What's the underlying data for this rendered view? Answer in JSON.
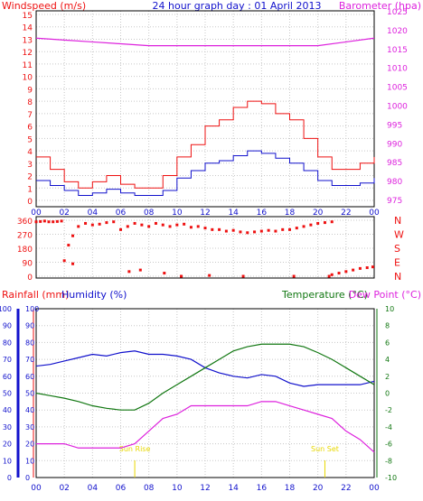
{
  "chart_data": [
    {
      "type": "line",
      "title": "24 hour graph day : 01 April 2013",
      "left_axis_label": "Windspeed (m/s)",
      "right_axis_label": "Barometer (hpa)",
      "x_ticks": [
        "00",
        "02",
        "04",
        "06",
        "08",
        "10",
        "12",
        "14",
        "16",
        "18",
        "20",
        "22",
        "00"
      ],
      "left_range": [
        0,
        15
      ],
      "left_ticks": [
        "0",
        "1",
        "2",
        "3",
        "4",
        "5",
        "6",
        "7",
        "8",
        "9",
        "10",
        "11",
        "12",
        "13",
        "14",
        "15"
      ],
      "right_range": [
        975,
        1025
      ],
      "right_ticks": [
        "975",
        "980",
        "985",
        "990",
        "995",
        "1000",
        "1005",
        "1010",
        "1015",
        "1020",
        "1025"
      ],
      "grid": true,
      "colors": {
        "gust": "#ee1111",
        "average": "#1111cc",
        "barometer": "#dd22dd"
      },
      "series": [
        {
          "key": "gust",
          "axis": "left",
          "x": [
            0,
            1,
            2,
            3,
            4,
            5,
            6,
            7,
            8,
            9,
            10,
            11,
            12,
            13,
            14,
            15,
            16,
            17,
            18,
            19,
            20,
            21,
            22,
            23,
            24
          ],
          "values": [
            3.5,
            2.5,
            1.5,
            1.0,
            1.5,
            2.0,
            1.3,
            1.0,
            1.0,
            2.0,
            3.5,
            4.5,
            6.0,
            6.5,
            7.5,
            8.0,
            7.8,
            7.0,
            6.5,
            5.0,
            3.5,
            2.5,
            2.5,
            3.0,
            3.5
          ]
        },
        {
          "key": "average",
          "axis": "left",
          "x": [
            0,
            1,
            2,
            3,
            4,
            5,
            6,
            7,
            8,
            9,
            10,
            11,
            12,
            13,
            14,
            15,
            16,
            17,
            18,
            19,
            20,
            21,
            22,
            23,
            24
          ],
          "values": [
            1.6,
            1.2,
            0.8,
            0.4,
            0.6,
            0.9,
            0.6,
            0.4,
            0.4,
            0.8,
            1.8,
            2.4,
            3.0,
            3.2,
            3.6,
            4.0,
            3.8,
            3.4,
            3.0,
            2.4,
            1.6,
            1.2,
            1.2,
            1.4,
            1.8
          ]
        },
        {
          "key": "barometer",
          "axis": "right",
          "x": [
            0,
            2,
            4,
            6,
            8,
            10,
            12,
            14,
            16,
            18,
            20,
            22,
            24
          ],
          "values": [
            1018,
            1017.5,
            1017,
            1016.5,
            1016,
            1016,
            1016,
            1016,
            1016,
            1016,
            1016,
            1017,
            1018
          ]
        }
      ]
    },
    {
      "type": "scatter",
      "left_range": [
        0,
        360
      ],
      "left_ticks": [
        "0",
        "90",
        "180",
        "270",
        "360"
      ],
      "right_ticks": [
        "N",
        "W",
        "S",
        "E",
        "N"
      ],
      "x_ticks": [
        "00",
        "02",
        "04",
        "06",
        "08",
        "10",
        "12",
        "14",
        "16",
        "18",
        "20",
        "22",
        "00"
      ],
      "colors": {
        "direction": "#ee1111"
      },
      "series": [
        {
          "key": "direction",
          "x": [
            0.0,
            0.3,
            0.6,
            0.9,
            1.2,
            1.5,
            1.8,
            2.0,
            2.3,
            2.6,
            3.0,
            3.5,
            4.0,
            4.5,
            5.0,
            5.5,
            6.0,
            6.5,
            7.0,
            7.5,
            8.0,
            8.5,
            9.0,
            9.5,
            10.0,
            10.5,
            11.0,
            11.5,
            12.0,
            12.5,
            13.0,
            13.5,
            14.0,
            14.5,
            15.0,
            15.5,
            16.0,
            16.5,
            17.0,
            17.5,
            18.0,
            18.5,
            19.0,
            19.5,
            20.0,
            20.5,
            21.0,
            2.6,
            6.6,
            7.4,
            9.1,
            10.3,
            12.3,
            14.7,
            18.3,
            20.8,
            21.0,
            21.5,
            22.0,
            22.5,
            23.0,
            23.5,
            23.9
          ],
          "values": [
            350,
            352,
            355,
            350,
            350,
            352,
            355,
            100,
            200,
            260,
            320,
            340,
            330,
            335,
            345,
            350,
            300,
            320,
            340,
            330,
            320,
            340,
            330,
            320,
            330,
            335,
            315,
            320,
            310,
            300,
            300,
            290,
            295,
            285,
            280,
            285,
            290,
            295,
            290,
            300,
            300,
            310,
            320,
            330,
            340,
            345,
            350,
            80,
            30,
            40,
            20,
            0,
            5,
            0,
            0,
            0,
            10,
            20,
            30,
            40,
            50,
            55,
            60
          ]
        }
      ]
    },
    {
      "type": "line",
      "left_axis_label_1": "Rainfall (mm)",
      "left_axis_label_2": "Humidity (%)",
      "right_axis_label_1": "Temperature (°C)",
      "right_axis_label_2": "Dew Point (°C)",
      "left_range": [
        0,
        100
      ],
      "left_ticks": [
        "0",
        "10",
        "20",
        "30",
        "40",
        "50",
        "60",
        "70",
        "80",
        "90",
        "100"
      ],
      "right_range": [
        -10,
        10
      ],
      "right_ticks": [
        "-10",
        "-8",
        "-6",
        "-4",
        "-2",
        "0",
        "2",
        "4",
        "6",
        "8",
        "10"
      ],
      "x_ticks": [
        "00",
        "02",
        "04",
        "06",
        "08",
        "10",
        "12",
        "14",
        "16",
        "18",
        "20",
        "22",
        "00"
      ],
      "annotations": [
        {
          "label": "Sun Rise",
          "x": 7.0
        },
        {
          "label": "Sun Set",
          "x": 20.5
        }
      ],
      "colors": {
        "humidity": "#1111cc",
        "temperature": "#117711",
        "dewpoint": "#dd22dd",
        "sun": "#e8d800"
      },
      "series": [
        {
          "key": "humidity",
          "axis": "left",
          "x": [
            0,
            1,
            2,
            3,
            4,
            5,
            6,
            7,
            8,
            9,
            10,
            11,
            12,
            13,
            14,
            15,
            16,
            17,
            18,
            19,
            20,
            21,
            22,
            23,
            24
          ],
          "values": [
            66,
            67,
            69,
            71,
            73,
            72,
            74,
            75,
            73,
            73,
            72,
            70,
            65,
            62,
            60,
            59,
            61,
            60,
            56,
            54,
            55,
            55,
            55,
            55,
            57
          ]
        },
        {
          "key": "temperature",
          "axis": "right",
          "x": [
            0,
            1,
            2,
            3,
            4,
            5,
            6,
            7,
            8,
            9,
            10,
            11,
            12,
            13,
            14,
            15,
            16,
            17,
            18,
            19,
            20,
            21,
            22,
            23,
            24
          ],
          "values": [
            0.0,
            -0.3,
            -0.6,
            -1.0,
            -1.5,
            -1.8,
            -2.0,
            -2.0,
            -1.2,
            0.0,
            1.0,
            2.0,
            3.0,
            4.0,
            5.0,
            5.5,
            5.8,
            5.8,
            5.8,
            5.5,
            4.8,
            4.0,
            3.0,
            2.0,
            1.0
          ]
        },
        {
          "key": "dewpoint",
          "axis": "right",
          "x": [
            0,
            1,
            2,
            3,
            4,
            5,
            6,
            7,
            8,
            9,
            10,
            11,
            12,
            13,
            14,
            15,
            16,
            17,
            18,
            19,
            20,
            21,
            22,
            23,
            24
          ],
          "values": [
            -6.0,
            -6.0,
            -6.0,
            -6.5,
            -6.5,
            -6.5,
            -6.5,
            -6.0,
            -4.5,
            -3.0,
            -2.5,
            -1.5,
            -1.5,
            -1.5,
            -1.5,
            -1.5,
            -1.0,
            -1.0,
            -1.5,
            -2.0,
            -2.5,
            -3.0,
            -4.5,
            -5.5,
            -7.0
          ]
        }
      ]
    }
  ]
}
